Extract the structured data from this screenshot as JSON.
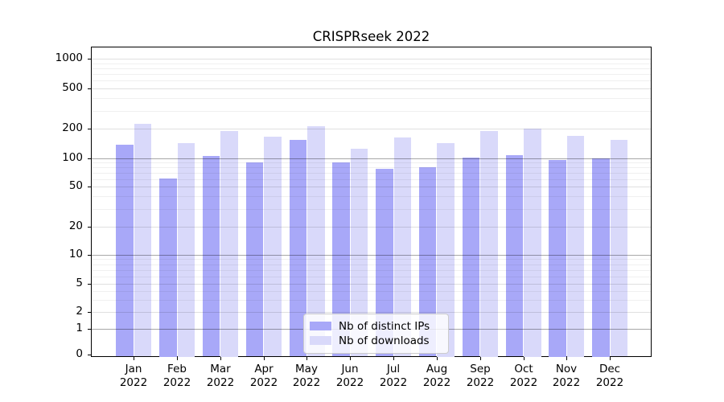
{
  "title": "CRISPRseek 2022",
  "chart_data": {
    "type": "bar",
    "title": "CRISPRseek 2022",
    "categories": [
      "Jan",
      "Feb",
      "Mar",
      "Apr",
      "May",
      "Jun",
      "Jul",
      "Aug",
      "Sep",
      "Oct",
      "Nov",
      "Dec"
    ],
    "year_label": "2022",
    "series": [
      {
        "name": "Nb of distinct IPs",
        "color": "#a8a8f8",
        "values": [
          138,
          61,
          106,
          91,
          155,
          91,
          77,
          81,
          102,
          108,
          97,
          100
        ]
      },
      {
        "name": "Nb of downloads",
        "color": "#d9d9fa",
        "values": [
          225,
          144,
          191,
          166,
          210,
          126,
          164,
          144,
          191,
          200,
          169,
          155
        ]
      }
    ],
    "yscale": "symlog",
    "yticks": [
      0,
      1,
      2,
      5,
      10,
      20,
      50,
      100,
      200,
      500,
      1000
    ],
    "y_minor_ticks": [
      3,
      4,
      6,
      7,
      8,
      9,
      30,
      40,
      60,
      70,
      80,
      90,
      300,
      400,
      600,
      700,
      800,
      900
    ],
    "ylim": [
      0,
      1320
    ],
    "grid": true,
    "legend_position": "lower-center-inside",
    "bar_colors": {
      "distinct_ips": "#a8a8f8",
      "downloads": "#d9d9fa"
    },
    "grid_color_strong": "#b0b0b0",
    "grid_color_light": "#e4e4e4"
  }
}
